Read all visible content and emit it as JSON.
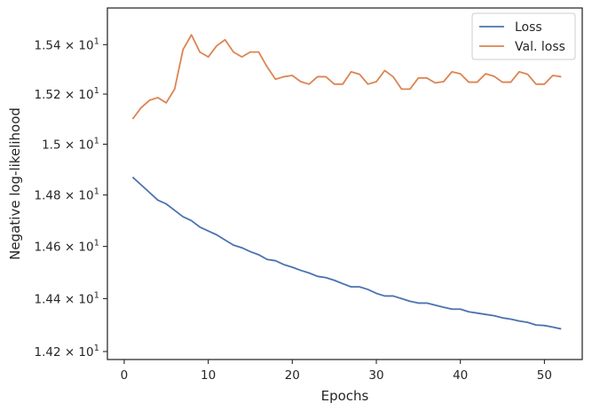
{
  "chart_data": {
    "type": "line",
    "xlabel": "Epochs",
    "ylabel": "Negative log-likelihood",
    "xlim": [
      -2,
      54.5
    ],
    "ylim": [
      14.17,
      15.55
    ],
    "y_scale": "log",
    "x_ticks": [
      0,
      10,
      20,
      30,
      40,
      50
    ],
    "x_tick_labels": [
      "0",
      "10",
      "20",
      "30",
      "40",
      "50"
    ],
    "y_ticks": [
      14.2,
      14.4,
      14.6,
      14.8,
      15.0,
      15.2,
      15.4
    ],
    "y_tick_labels": [
      {
        "mantissa": "1.42",
        "exp": "1"
      },
      {
        "mantissa": "1.44",
        "exp": "1"
      },
      {
        "mantissa": "1.46",
        "exp": "1"
      },
      {
        "mantissa": "1.48",
        "exp": "1"
      },
      {
        "mantissa": "1.5",
        "exp": "1"
      },
      {
        "mantissa": "1.52",
        "exp": "1"
      },
      {
        "mantissa": "1.54",
        "exp": "1"
      }
    ],
    "legend_position": "top-right",
    "grid": false,
    "x": [
      1,
      2,
      3,
      4,
      5,
      6,
      7,
      8,
      9,
      10,
      11,
      12,
      13,
      14,
      15,
      16,
      17,
      18,
      19,
      20,
      21,
      22,
      23,
      24,
      25,
      26,
      27,
      28,
      29,
      30,
      31,
      32,
      33,
      34,
      35,
      36,
      37,
      38,
      39,
      40,
      41,
      42,
      43,
      44,
      45,
      46,
      47,
      48,
      49,
      50,
      51,
      52
    ],
    "series": [
      {
        "name": "Loss",
        "color": "#4c72b0",
        "values": [
          14.87,
          14.84,
          14.81,
          14.78,
          14.765,
          14.74,
          14.715,
          14.7,
          14.675,
          14.66,
          14.645,
          14.625,
          14.605,
          14.595,
          14.58,
          14.568,
          14.55,
          14.545,
          14.53,
          14.52,
          14.508,
          14.498,
          14.485,
          14.48,
          14.47,
          14.457,
          14.445,
          14.445,
          14.435,
          14.42,
          14.41,
          14.41,
          14.4,
          14.39,
          14.383,
          14.383,
          14.375,
          14.367,
          14.36,
          14.36,
          14.35,
          14.345,
          14.34,
          14.335,
          14.327,
          14.322,
          14.315,
          14.31,
          14.3,
          14.298,
          14.292,
          14.285
        ]
      },
      {
        "name": "Val. loss",
        "color": "#dd8452",
        "values": [
          15.1,
          15.145,
          15.175,
          15.186,
          15.165,
          15.22,
          15.38,
          15.44,
          15.37,
          15.35,
          15.395,
          15.42,
          15.37,
          15.35,
          15.37,
          15.37,
          15.31,
          15.26,
          15.27,
          15.275,
          15.25,
          15.24,
          15.27,
          15.27,
          15.24,
          15.24,
          15.29,
          15.28,
          15.24,
          15.25,
          15.295,
          15.27,
          15.22,
          15.22,
          15.265,
          15.265,
          15.245,
          15.25,
          15.29,
          15.282,
          15.248,
          15.248,
          15.282,
          15.272,
          15.248,
          15.248,
          15.29,
          15.28,
          15.24,
          15.24,
          15.275,
          15.27
        ]
      }
    ]
  }
}
